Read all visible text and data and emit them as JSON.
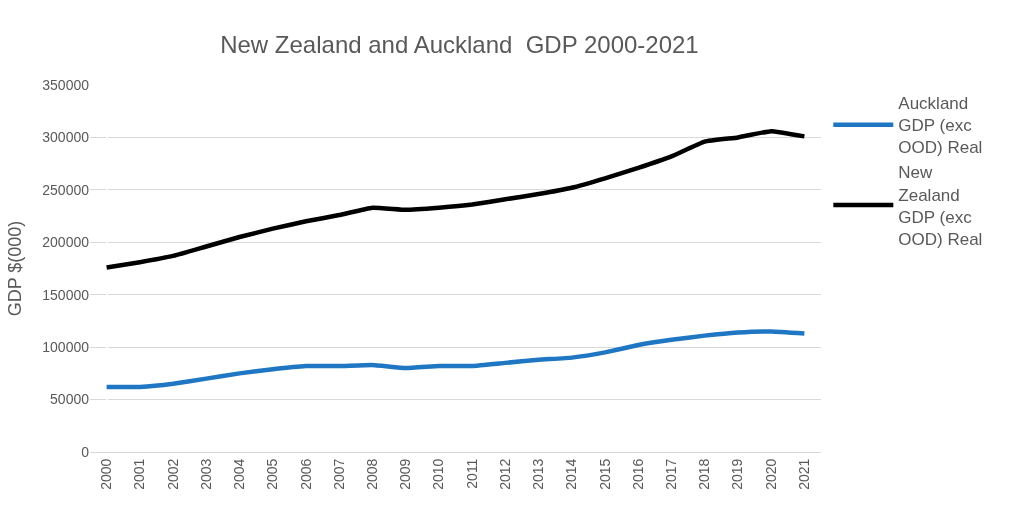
{
  "chart_data": {
    "type": "line",
    "title": "New Zealand and Auckland  GDP 2000-2021",
    "ylabel": "GDP $(000)",
    "categories": [
      "2000",
      "2001",
      "2002",
      "2003",
      "2004",
      "2005",
      "2006",
      "2007",
      "2008",
      "2009",
      "2010",
      "2011",
      "2012",
      "2013",
      "2014",
      "2015",
      "2016",
      "2017",
      "2018",
      "2019",
      "2020",
      "2021"
    ],
    "series": [
      {
        "name": "Auckland GDP (exc OOD) Real",
        "color": "#1f77c4",
        "values": [
          62000,
          62000,
          65000,
          70000,
          75000,
          79000,
          82000,
          82000,
          83000,
          80000,
          82000,
          82000,
          85000,
          88000,
          90000,
          95000,
          102000,
          107000,
          111000,
          114000,
          115000,
          113000
        ]
      },
      {
        "name": "New Zealand GDP (exc OOD) Real",
        "color": "#000000",
        "values": [
          176000,
          181000,
          187000,
          196000,
          205000,
          213000,
          220000,
          226000,
          233000,
          231000,
          233000,
          236000,
          241000,
          246000,
          252000,
          261000,
          271000,
          282000,
          296000,
          300000,
          306000,
          301000
        ]
      }
    ],
    "ylim": [
      0,
      350000
    ],
    "yticks": [
      0,
      50000,
      100000,
      150000,
      200000,
      250000,
      300000,
      350000
    ],
    "grid": "y",
    "legend": "right",
    "marker": "none",
    "line_style": "solid"
  }
}
